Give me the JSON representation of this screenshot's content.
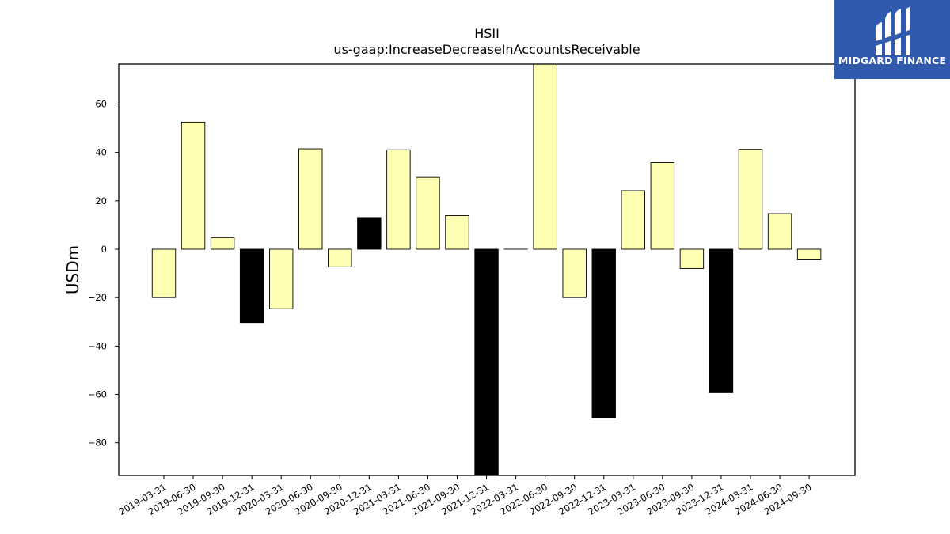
{
  "logo": {
    "text": "MIDGARD FINANCE",
    "background": "#2f5aae",
    "icon": "midgard-logo-icon"
  },
  "chart_data": {
    "type": "bar",
    "title": "HSII",
    "subtitle": "us-gaap:IncreaseDecreaseInAccountsReceivable",
    "xlabel": "",
    "ylabel": "USDm",
    "ylim": [
      -93.5,
      76.5
    ],
    "yticks": [
      -80,
      -60,
      -40,
      -20,
      0,
      20,
      40,
      60
    ],
    "grid": false,
    "colors": {
      "regular": "#ffffb3",
      "q4": "#000000",
      "edge": "#000000"
    },
    "categories": [
      "2019-03-31",
      "2019-06-30",
      "2019-09-30",
      "2019-12-31",
      "2020-03-31",
      "2020-06-30",
      "2020-09-30",
      "2020-12-31",
      "2021-03-31",
      "2021-06-30",
      "2021-09-30",
      "2021-12-31",
      "2022-03-31",
      "2022-06-30",
      "2022-09-30",
      "2022-12-31",
      "2023-03-31",
      "2023-06-30",
      "2023-09-30",
      "2023-12-31",
      "2024-03-31",
      "2024-06-30",
      "2024-09-30"
    ],
    "values": [
      -20,
      52.5,
      4.8,
      -30.3,
      -24.6,
      41.5,
      -7.3,
      13.1,
      41.1,
      29.7,
      13.9,
      -100,
      0,
      80,
      -20,
      -69.6,
      24.2,
      35.8,
      -8,
      -59.3,
      41.3,
      14.7,
      -4.4
    ],
    "q4_flags": [
      false,
      false,
      false,
      true,
      false,
      false,
      false,
      true,
      false,
      false,
      false,
      true,
      false,
      false,
      false,
      true,
      false,
      false,
      false,
      true,
      false,
      false,
      false
    ]
  }
}
